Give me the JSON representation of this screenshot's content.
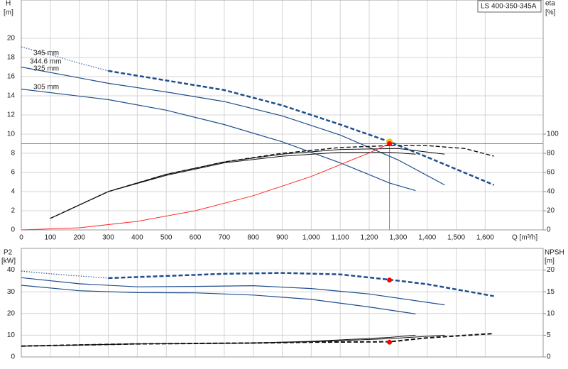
{
  "chart_data": [
    {
      "type": "line",
      "title": "LS 400-350-345A",
      "ylabel": "H",
      "yunit": "[m]",
      "y2label": "eta",
      "y2unit": "[%]",
      "xlabel": "Q [m³/h]",
      "xlim": [
        0,
        1800
      ],
      "ylim": [
        0,
        24
      ],
      "y2lim": [
        0,
        240
      ],
      "xticks": [
        0,
        100,
        200,
        300,
        400,
        500,
        600,
        700,
        800,
        900,
        {
          "value": 1000,
          "label": "1,000"
        },
        {
          "value": 1100,
          "label": "1,100"
        },
        {
          "value": 1200,
          "label": "1,200"
        },
        {
          "value": 1300,
          "label": "1,300"
        },
        {
          "value": 1400,
          "label": "1,400"
        },
        {
          "value": 1500,
          "label": "1,500"
        },
        {
          "value": 1600,
          "label": "1,600"
        }
      ],
      "yticks": [
        0,
        2,
        4,
        6,
        8,
        10,
        12,
        14,
        16,
        18,
        20
      ],
      "y2ticks": [
        0,
        20,
        40,
        60,
        80,
        100
      ],
      "grid": true,
      "series": [
        {
          "name": "345 mm",
          "color": "#2a5a9a",
          "dash": "dotted",
          "width": 1.2,
          "x": [
            0,
            100,
            200,
            300
          ],
          "values": [
            19.1,
            18.3,
            17.4,
            16.6
          ]
        },
        {
          "name": "344.6 mm",
          "color": "#1f4e8c",
          "dash": "dashed",
          "width": 2.5,
          "x": [
            300,
            500,
            700,
            900,
            1100,
            1270,
            1400,
            1630
          ],
          "values": [
            16.6,
            15.6,
            14.6,
            13.0,
            11.0,
            9.2,
            7.6,
            4.7
          ]
        },
        {
          "name": "325 mm",
          "color": "#1f4e8c",
          "dash": "solid",
          "width": 1.2,
          "x": [
            0,
            300,
            500,
            700,
            900,
            1100,
            1300,
            1460
          ],
          "values": [
            17.0,
            15.3,
            14.4,
            13.4,
            11.9,
            9.9,
            7.3,
            4.7
          ]
        },
        {
          "name": "305 mm",
          "color": "#1f4e8c",
          "dash": "solid",
          "width": 1.2,
          "x": [
            0,
            300,
            500,
            700,
            900,
            1100,
            1270,
            1360
          ],
          "values": [
            14.7,
            13.6,
            12.5,
            11.0,
            9.2,
            7.0,
            4.9,
            4.1
          ]
        },
        {
          "color": "#111111",
          "dash": "dashed",
          "width": 1.4,
          "axis": "y2",
          "x": [
            100,
            300,
            500,
            700,
            900,
            1100,
            1270,
            1400,
            1530,
            1630
          ],
          "values": [
            12,
            40,
            58,
            71,
            80,
            86,
            88,
            88,
            85,
            77
          ]
        },
        {
          "color": "#111111",
          "dash": "solid",
          "width": 1,
          "axis": "y2",
          "x": [
            100,
            300,
            500,
            700,
            900,
            1100,
            1300,
            1460
          ],
          "values": [
            12,
            40,
            58,
            71,
            79,
            84,
            85,
            79
          ]
        },
        {
          "color": "#111111",
          "dash": "solid",
          "width": 1,
          "axis": "y2",
          "x": [
            100,
            300,
            500,
            700,
            900,
            1100,
            1270,
            1360
          ],
          "values": [
            12,
            40,
            57,
            70,
            77,
            81,
            81,
            79
          ]
        },
        {
          "color": "#ff2a2a",
          "dash": "solid",
          "width": 1,
          "x": [
            0,
            200,
            400,
            600,
            800,
            1000,
            1200,
            1270
          ],
          "values": [
            0,
            0.22,
            0.89,
            2.0,
            3.57,
            5.58,
            8.04,
            9.0
          ]
        }
      ],
      "duty_point": {
        "x": 1270,
        "y": 9.0
      },
      "points": [
        {
          "x": 1270,
          "y": 9.2,
          "color": "#f5c400"
        },
        {
          "x": 1270,
          "y": 9.0,
          "color": "#ff0000"
        }
      ]
    },
    {
      "type": "line",
      "ylabel": "P2",
      "yunit": "[kW]",
      "y2label": "NPSH",
      "y2unit": "[m]",
      "xlim": [
        0,
        1800
      ],
      "ylim": [
        0,
        50
      ],
      "y2lim": [
        0,
        25
      ],
      "yticks": [
        0,
        10,
        20,
        30,
        40
      ],
      "y2ticks": [
        0,
        5,
        10,
        15,
        20
      ],
      "grid": true,
      "series": [
        {
          "color": "#2a5a9a",
          "dash": "dotted",
          "width": 1.2,
          "x": [
            0,
            100,
            200,
            300
          ],
          "values": [
            39.5,
            38.3,
            37.3,
            36.3
          ]
        },
        {
          "color": "#1f4e8c",
          "dash": "dashed",
          "width": 2.5,
          "x": [
            300,
            500,
            700,
            900,
            1100,
            1270,
            1400,
            1630
          ],
          "values": [
            36.3,
            37.3,
            38.3,
            38.7,
            38.0,
            35.6,
            33.5,
            28.0
          ]
        },
        {
          "color": "#1f4e8c",
          "dash": "solid",
          "width": 1.2,
          "x": [
            0,
            200,
            400,
            600,
            800,
            1000,
            1200,
            1460
          ],
          "values": [
            36.5,
            33.7,
            32.3,
            32.5,
            32.8,
            31.5,
            29.0,
            24.0
          ]
        },
        {
          "color": "#1f4e8c",
          "dash": "solid",
          "width": 1.2,
          "x": [
            0,
            200,
            400,
            600,
            800,
            1000,
            1200,
            1360
          ],
          "values": [
            33.0,
            30.5,
            29.6,
            29.5,
            28.5,
            26.5,
            23.0,
            19.8
          ]
        },
        {
          "color": "#111111",
          "dash": "dashed",
          "width": 2,
          "axis": "y2",
          "x": [
            0,
            400,
            800,
            1000,
            1270,
            1400,
            1630
          ],
          "values": [
            2.5,
            3.0,
            3.2,
            3.4,
            3.5,
            4.4,
            5.4
          ]
        },
        {
          "color": "#111111",
          "dash": "solid",
          "width": 1,
          "axis": "y2",
          "x": [
            0,
            400,
            800,
            1000,
            1270,
            1460
          ],
          "values": [
            2.5,
            3.0,
            3.2,
            3.5,
            4.2,
            5.0
          ]
        },
        {
          "color": "#111111",
          "dash": "solid",
          "width": 1,
          "axis": "y2",
          "x": [
            0,
            400,
            800,
            1000,
            1270,
            1360
          ],
          "values": [
            2.5,
            3.0,
            3.2,
            3.6,
            4.5,
            5.0
          ]
        }
      ],
      "points": [
        {
          "x": 1270,
          "y": 35.4,
          "color": "#ff0000"
        },
        {
          "x": 1270,
          "y": 3.4,
          "color": "#ff0000",
          "axis": "y2"
        }
      ]
    }
  ]
}
